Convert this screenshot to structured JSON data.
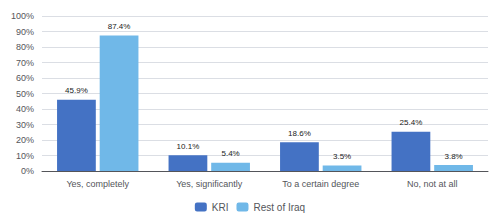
{
  "chart_data": {
    "type": "bar",
    "categories": [
      "Yes, completely",
      "Yes, significantly",
      "To a certain degree",
      "No, not at all"
    ],
    "series": [
      {
        "name": "KRI",
        "color": "#4472c4",
        "values": [
          45.9,
          10.1,
          18.6,
          25.4
        ],
        "value_labels": [
          "45.9%",
          "10.1%",
          "18.6%",
          "25.4%"
        ]
      },
      {
        "name": "Rest of Iraq",
        "color": "#70b8e8",
        "values": [
          87.4,
          5.4,
          3.5,
          3.8
        ],
        "value_labels": [
          "87.4%",
          "5.4%",
          "3.5%",
          "3.8%"
        ]
      }
    ],
    "ylim": [
      0,
      100
    ],
    "yticks": [
      {
        "value": 0,
        "label": "0%"
      },
      {
        "value": 10,
        "label": "10%"
      },
      {
        "value": 20,
        "label": "20%"
      },
      {
        "value": 30,
        "label": "30%"
      },
      {
        "value": 40,
        "label": "40%"
      },
      {
        "value": 50,
        "label": "50%"
      },
      {
        "value": 60,
        "label": "60%"
      },
      {
        "value": 70,
        "label": "70%"
      },
      {
        "value": 80,
        "label": "80%"
      },
      {
        "value": 90,
        "label": "90%"
      },
      {
        "value": 100,
        "label": "100%"
      }
    ],
    "grid": true,
    "legend": "bottom",
    "data_labels": true
  }
}
